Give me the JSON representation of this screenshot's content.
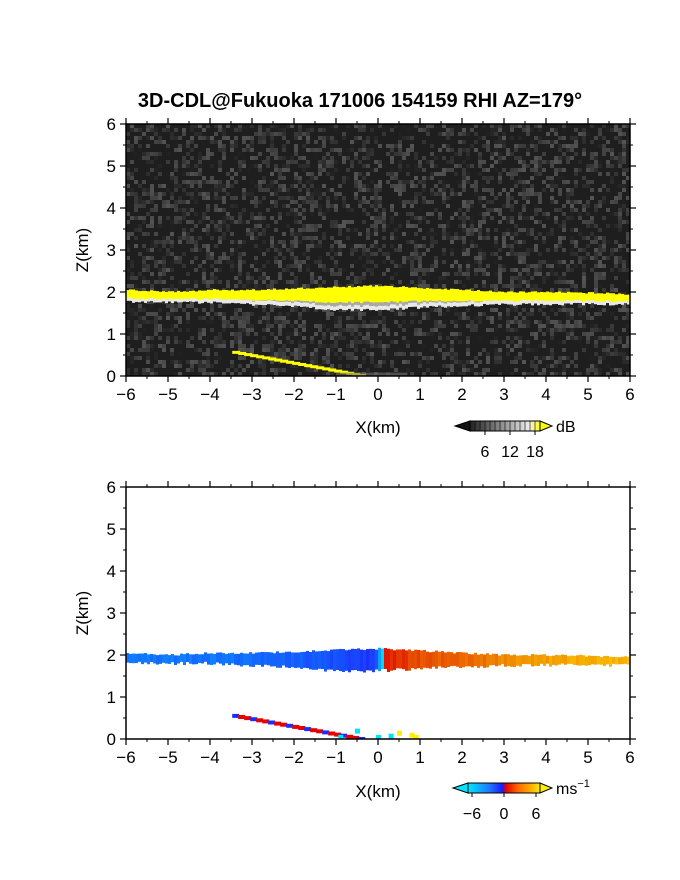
{
  "title": "3D-CDL@Fukuoka 171006 154159 RHI AZ=179°",
  "chart_data": [
    {
      "type": "heatmap",
      "panel": "reflectivity",
      "xlabel": "X(km)",
      "ylabel": "Z(km)",
      "xlim": [
        -6,
        6
      ],
      "ylim": [
        0,
        6
      ],
      "x_ticks": [
        "-6",
        "-5",
        "-4",
        "-3",
        "-2",
        "-1",
        "0",
        "1",
        "2",
        "3",
        "4",
        "5",
        "6"
      ],
      "y_ticks": [
        "0",
        "1",
        "2",
        "3",
        "4",
        "5",
        "6"
      ],
      "colorbar": {
        "unit": "dB",
        "ticks": [
          "6",
          "12",
          "18"
        ],
        "min": 0,
        "max": 21
      },
      "layer": {
        "x": [
          -6,
          -5,
          -4,
          -3,
          -2,
          -1,
          0,
          1,
          2,
          3,
          4,
          5,
          6
        ],
        "top": [
          2.05,
          2.0,
          2.05,
          2.05,
          2.08,
          2.12,
          2.15,
          2.1,
          2.05,
          2.0,
          2.0,
          1.98,
          1.95
        ],
        "bottom": [
          1.82,
          1.8,
          1.8,
          1.75,
          1.7,
          1.62,
          1.62,
          1.68,
          1.72,
          1.75,
          1.76,
          1.76,
          1.75
        ]
      },
      "ground_streak": {
        "x": [
          -3.4,
          -0.4
        ],
        "z": [
          0.55,
          0.0
        ]
      }
    },
    {
      "type": "heatmap",
      "panel": "doppler_velocity",
      "xlabel": "X(km)",
      "ylabel": "Z(km)",
      "xlim": [
        -6,
        6
      ],
      "ylim": [
        0,
        6
      ],
      "x_ticks": [
        "-6",
        "-5",
        "-4",
        "-3",
        "-2",
        "-1",
        "0",
        "1",
        "2",
        "3",
        "4",
        "5",
        "6"
      ],
      "y_ticks": [
        "0",
        "1",
        "2",
        "3",
        "4",
        "5",
        "6"
      ],
      "colorbar": {
        "unit": "ms",
        "unit_exp": "−1",
        "ticks": [
          "−6",
          "0",
          "6"
        ],
        "min": -9,
        "max": 9
      },
      "velocity_profile": {
        "x": [
          -6,
          -4,
          -2,
          -1,
          -0.1,
          0.1,
          1,
          2,
          4,
          6
        ],
        "v": [
          -5,
          -5,
          -6,
          -7,
          -8,
          1,
          3,
          4,
          6,
          7
        ]
      },
      "ground_streak": {
        "x": [
          -3.4,
          -0.4
        ],
        "z": [
          0.55,
          0.0
        ]
      }
    }
  ],
  "colors": {
    "background_dark": "#1e1e1e",
    "layer_yellow": "#ffff00",
    "negative_velocity": [
      "#00e0ff",
      "#1e90ff",
      "#1432ff"
    ],
    "positive_velocity": [
      "#e60000",
      "#ff6600",
      "#ffa500",
      "#ffd000"
    ]
  }
}
